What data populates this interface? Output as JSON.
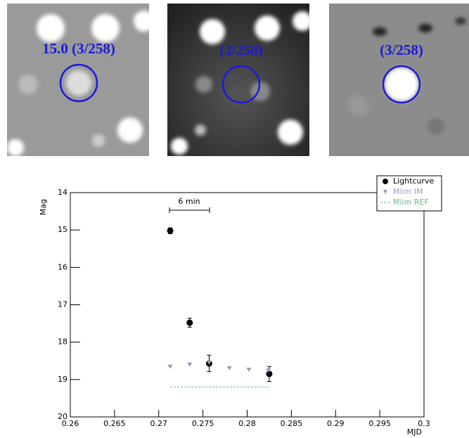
{
  "stamps": [
    {
      "label": "15.0 (3/258)"
    },
    {
      "label": "(3/258)"
    },
    {
      "label": "(3/258)"
    }
  ],
  "chart_data": {
    "type": "scatter",
    "x_label": "MJD",
    "y_label": "Mag",
    "xlim": [
      0.26,
      0.3
    ],
    "ylim": [
      14,
      20
    ],
    "y_inverted": true,
    "xticks": [
      0.26,
      0.265,
      0.27,
      0.275,
      0.28,
      0.285,
      0.29,
      0.295,
      0.3
    ],
    "yticks": [
      14,
      15,
      16,
      17,
      18,
      19,
      20
    ],
    "annotation": "6 min",
    "legend": "top-right",
    "series": [
      {
        "name": "Lightcurve",
        "color": "#000000",
        "marker": "circle",
        "x": [
          0.2713,
          0.2735,
          0.2757,
          0.2825
        ],
        "values": [
          15.02,
          17.48,
          18.57,
          18.85
        ],
        "errors": [
          0.08,
          0.12,
          0.22,
          0.2
        ]
      },
      {
        "name": "Mlim IM",
        "color": "#9a9ab8",
        "marker": "triangle",
        "x": [
          0.2713,
          0.2735,
          0.2757,
          0.278,
          0.2802,
          0.2824
        ],
        "values": [
          18.66,
          18.6,
          18.55,
          18.7,
          18.74,
          18.76
        ]
      },
      {
        "name": "Mlim REF",
        "color": "#66bb88",
        "marker": "dashed-line",
        "x": [
          0.2713,
          0.2825
        ],
        "values": [
          19.2,
          19.2
        ]
      }
    ]
  }
}
